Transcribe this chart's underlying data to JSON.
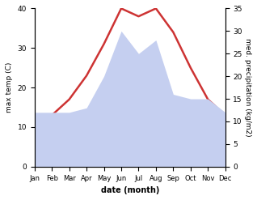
{
  "months": [
    "Jan",
    "Feb",
    "Mar",
    "Apr",
    "May",
    "Jun",
    "Jul",
    "Aug",
    "Sep",
    "Oct",
    "Nov",
    "Dec"
  ],
  "temperature": [
    10,
    13,
    17,
    23,
    31,
    40,
    38,
    40,
    34,
    25,
    17,
    13
  ],
  "precipitation": [
    12,
    12,
    12,
    13,
    20,
    30,
    25,
    28,
    16,
    15,
    15,
    12
  ],
  "temp_color": "#cd3333",
  "precip_fill_color": "#c5cff0",
  "temp_ylim": [
    0,
    40
  ],
  "precip_ylim": [
    0,
    35
  ],
  "xlabel": "date (month)",
  "ylabel_left": "max temp (C)",
  "ylabel_right": "med. precipitation (kg/m2)",
  "temp_linewidth": 1.8,
  "fig_width": 3.18,
  "fig_height": 2.47,
  "dpi": 100
}
